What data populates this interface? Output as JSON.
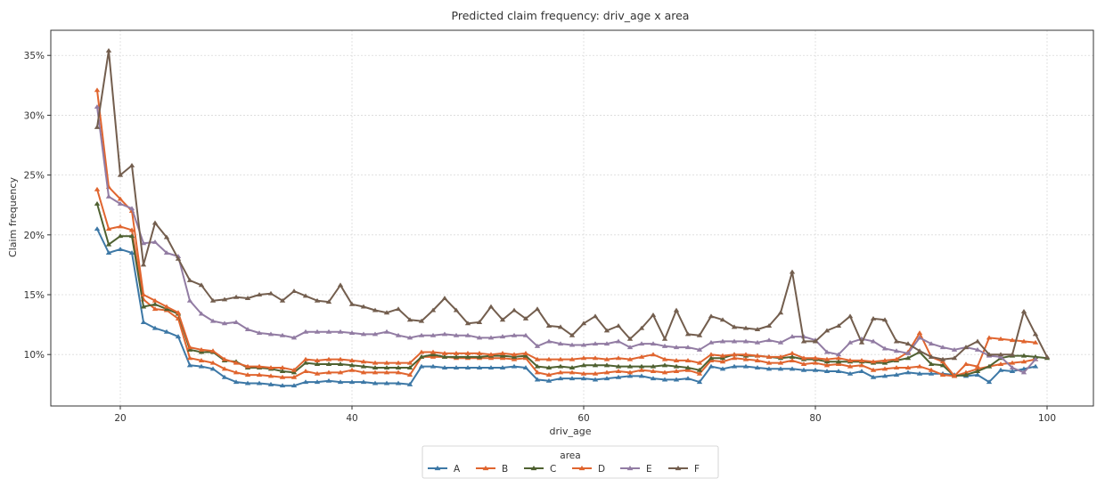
{
  "chart_data": {
    "type": "line",
    "title": "Predicted claim frequency: driv_age x area",
    "xlabel": "driv_age",
    "ylabel": "Claim frequency",
    "xlim": [
      14,
      104
    ],
    "ylim": [
      0.057,
      0.371
    ],
    "xticks": [
      20,
      40,
      60,
      80,
      100
    ],
    "xtick_labels": [
      "20",
      "40",
      "60",
      "80",
      "100"
    ],
    "yticks": [
      0.1,
      0.15,
      0.2,
      0.25,
      0.3,
      0.35
    ],
    "ytick_labels": [
      "10%",
      "15%",
      "20%",
      "25%",
      "30%",
      "35%"
    ],
    "grid": true,
    "legend": {
      "title": "area",
      "placement": "below-center",
      "columns": 6
    },
    "x": [
      18,
      19,
      20,
      21,
      22,
      23,
      24,
      25,
      26,
      27,
      28,
      29,
      30,
      31,
      32,
      33,
      34,
      35,
      36,
      37,
      38,
      39,
      40,
      41,
      42,
      43,
      44,
      45,
      46,
      47,
      48,
      49,
      50,
      51,
      52,
      53,
      54,
      55,
      56,
      57,
      58,
      59,
      60,
      61,
      62,
      63,
      64,
      65,
      66,
      67,
      68,
      69,
      70,
      71,
      72,
      73,
      74,
      75,
      76,
      77,
      78,
      79,
      80,
      81,
      82,
      83,
      84,
      85,
      86,
      87,
      88,
      89,
      90,
      91,
      92,
      93,
      94,
      95,
      96,
      97,
      98,
      99,
      100
    ],
    "series": [
      {
        "name": "A",
        "color": "#3d78a6",
        "values": [
          0.205,
          0.185,
          0.188,
          0.185,
          0.127,
          0.122,
          0.119,
          0.115,
          0.091,
          0.09,
          0.088,
          0.081,
          0.077,
          0.076,
          0.076,
          0.075,
          0.074,
          0.074,
          0.077,
          0.077,
          0.078,
          0.077,
          0.077,
          0.077,
          0.076,
          0.076,
          0.076,
          0.075,
          0.09,
          0.09,
          0.089,
          0.089,
          0.089,
          0.089,
          0.089,
          0.089,
          0.09,
          0.089,
          0.079,
          0.078,
          0.08,
          0.08,
          0.08,
          0.079,
          0.08,
          0.081,
          0.082,
          0.082,
          0.08,
          0.079,
          0.079,
          0.08,
          0.077,
          0.09,
          0.088,
          0.09,
          0.09,
          0.089,
          0.088,
          0.088,
          0.088,
          0.087,
          0.087,
          0.086,
          0.086,
          0.084,
          0.086,
          0.081,
          0.082,
          0.083,
          0.085,
          0.084,
          0.084,
          0.084,
          0.083,
          0.082,
          0.083,
          0.077,
          0.087,
          0.086,
          0.088,
          0.09,
          null
        ]
      },
      {
        "name": "B",
        "color": "#e0652f",
        "values": [
          0.238,
          0.205,
          0.207,
          0.204,
          0.146,
          0.138,
          0.137,
          0.13,
          0.097,
          0.095,
          0.093,
          0.088,
          0.085,
          0.083,
          0.083,
          0.082,
          0.081,
          0.081,
          0.086,
          0.084,
          0.085,
          0.085,
          0.087,
          0.085,
          0.085,
          0.085,
          0.085,
          0.083,
          0.098,
          0.098,
          0.098,
          0.097,
          0.097,
          0.097,
          0.097,
          0.097,
          0.096,
          0.097,
          0.085,
          0.083,
          0.085,
          0.085,
          0.084,
          0.084,
          0.085,
          0.086,
          0.085,
          0.087,
          0.086,
          0.085,
          0.086,
          0.087,
          0.084,
          0.095,
          0.094,
          0.097,
          0.096,
          0.095,
          0.093,
          0.093,
          0.095,
          0.092,
          0.093,
          0.091,
          0.092,
          0.09,
          0.091,
          0.087,
          0.088,
          0.089,
          0.089,
          0.09,
          0.087,
          0.083,
          0.082,
          0.085,
          0.088,
          0.09,
          0.092,
          0.093,
          0.094,
          0.096,
          null
        ]
      },
      {
        "name": "C",
        "color": "#4f6131",
        "values": [
          0.226,
          0.192,
          0.199,
          0.199,
          0.14,
          0.142,
          0.138,
          0.134,
          0.104,
          0.102,
          0.102,
          0.095,
          0.094,
          0.089,
          0.089,
          0.088,
          0.086,
          0.085,
          0.093,
          0.092,
          0.092,
          0.092,
          0.091,
          0.09,
          0.089,
          0.089,
          0.089,
          0.089,
          0.098,
          0.1,
          0.098,
          0.098,
          0.098,
          0.098,
          0.099,
          0.099,
          0.098,
          0.099,
          0.09,
          0.089,
          0.09,
          0.089,
          0.091,
          0.091,
          0.091,
          0.09,
          0.09,
          0.09,
          0.09,
          0.091,
          0.09,
          0.089,
          0.087,
          0.097,
          0.097,
          0.1,
          0.099,
          0.099,
          0.098,
          0.097,
          0.098,
          0.096,
          0.096,
          0.094,
          0.094,
          0.094,
          0.094,
          0.093,
          0.093,
          0.095,
          0.097,
          0.102,
          0.092,
          0.091,
          0.082,
          0.083,
          0.086,
          0.09,
          0.097,
          0.099,
          0.099,
          0.098,
          0.097
        ]
      },
      {
        "name": "D",
        "color": "#e0652f",
        "values": [
          0.321,
          0.24,
          0.23,
          0.22,
          0.15,
          0.145,
          0.14,
          0.135,
          0.106,
          0.104,
          0.103,
          0.096,
          0.093,
          0.09,
          0.09,
          0.089,
          0.089,
          0.087,
          0.096,
          0.095,
          0.096,
          0.096,
          0.095,
          0.094,
          0.093,
          0.093,
          0.093,
          0.093,
          0.102,
          0.102,
          0.101,
          0.101,
          0.101,
          0.101,
          0.1,
          0.101,
          0.1,
          0.101,
          0.096,
          0.096,
          0.096,
          0.096,
          0.097,
          0.097,
          0.096,
          0.097,
          0.096,
          0.098,
          0.1,
          0.096,
          0.095,
          0.095,
          0.093,
          0.1,
          0.099,
          0.1,
          0.1,
          0.099,
          0.098,
          0.098,
          0.101,
          0.097,
          0.097,
          0.096,
          0.097,
          0.095,
          0.095,
          0.094,
          0.095,
          0.096,
          0.102,
          0.118,
          0.098,
          0.094,
          0.082,
          0.092,
          0.09,
          0.114,
          0.113,
          0.112,
          0.111,
          0.11,
          null
        ]
      },
      {
        "name": "E",
        "color": "#927ca3",
        "values": [
          0.307,
          0.232,
          0.226,
          0.222,
          0.193,
          0.194,
          0.185,
          0.182,
          0.145,
          0.134,
          0.128,
          0.126,
          0.127,
          0.121,
          0.118,
          0.117,
          0.116,
          0.114,
          0.119,
          0.119,
          0.119,
          0.119,
          0.118,
          0.117,
          0.117,
          0.119,
          0.116,
          0.114,
          0.116,
          0.116,
          0.117,
          0.116,
          0.116,
          0.114,
          0.114,
          0.115,
          0.116,
          0.116,
          0.107,
          0.111,
          0.109,
          0.108,
          0.108,
          0.109,
          0.109,
          0.111,
          0.106,
          0.109,
          0.109,
          0.107,
          0.106,
          0.106,
          0.104,
          0.11,
          0.111,
          0.111,
          0.111,
          0.11,
          0.112,
          0.11,
          0.115,
          0.115,
          0.112,
          0.102,
          0.1,
          0.11,
          0.113,
          0.111,
          0.105,
          0.103,
          0.101,
          0.114,
          0.109,
          0.106,
          0.104,
          0.106,
          0.104,
          0.099,
          0.098,
          0.089,
          0.085,
          0.096,
          null
        ]
      },
      {
        "name": "F",
        "color": "#735e4e",
        "values": [
          0.29,
          0.354,
          0.25,
          0.258,
          0.175,
          0.21,
          0.198,
          0.18,
          0.162,
          0.158,
          0.145,
          0.146,
          0.148,
          0.147,
          0.15,
          0.151,
          0.145,
          0.153,
          0.149,
          0.145,
          0.144,
          0.158,
          0.142,
          0.14,
          0.137,
          0.135,
          0.138,
          0.129,
          0.128,
          0.137,
          0.147,
          0.137,
          0.126,
          0.127,
          0.14,
          0.129,
          0.137,
          0.13,
          0.138,
          0.124,
          0.123,
          0.116,
          0.126,
          0.132,
          0.12,
          0.124,
          0.113,
          0.122,
          0.133,
          0.113,
          0.137,
          0.117,
          0.116,
          0.132,
          0.129,
          0.123,
          0.122,
          0.121,
          0.124,
          0.135,
          0.169,
          0.111,
          0.111,
          0.12,
          0.124,
          0.132,
          0.11,
          0.13,
          0.129,
          0.111,
          0.109,
          0.103,
          0.098,
          0.096,
          0.097,
          0.106,
          0.111,
          0.1,
          0.1,
          0.1,
          0.136,
          0.117,
          0.098
        ]
      }
    ]
  }
}
